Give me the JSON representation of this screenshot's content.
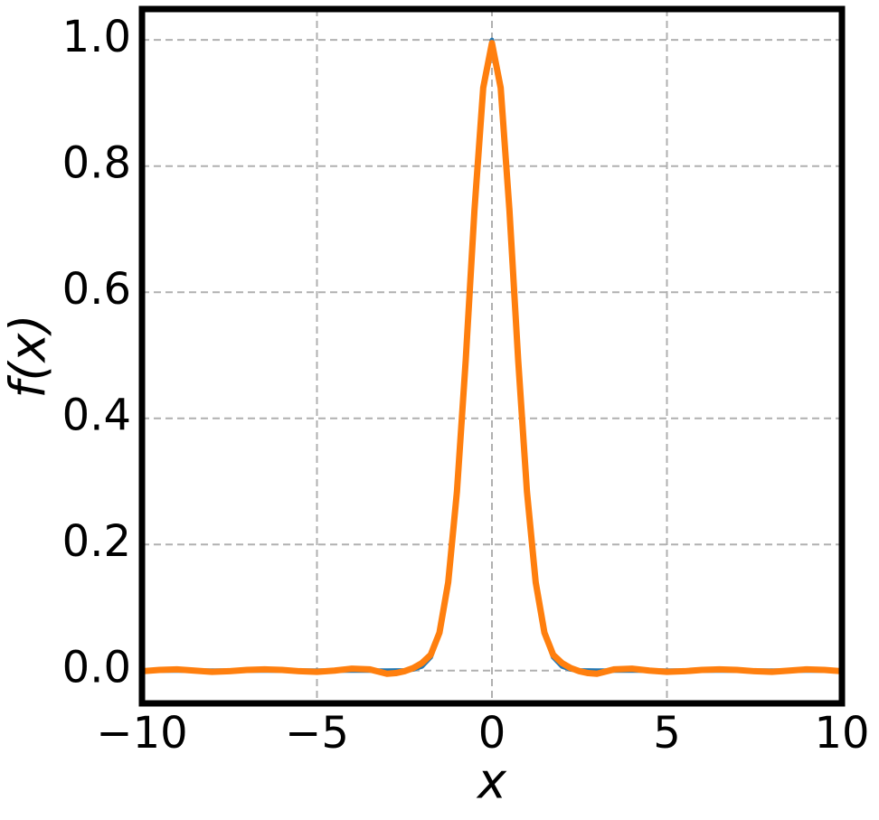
{
  "chart_data": {
    "type": "line",
    "x_label": "x",
    "y_label": "f(x)",
    "x": [
      -10,
      -9.5,
      -9,
      -8.5,
      -8,
      -7.5,
      -7,
      -6.5,
      -6,
      -5.5,
      -5,
      -4.5,
      -4,
      -3.5,
      -3,
      -2.75,
      -2.5,
      -2.25,
      -2,
      -1.75,
      -1.5,
      -1.25,
      -1,
      -0.75,
      -0.5,
      -0.25,
      0,
      0.25,
      0.5,
      0.75,
      1,
      1.25,
      1.5,
      1.75,
      2,
      2.25,
      2.5,
      2.75,
      3,
      3.5,
      4,
      4.5,
      5,
      5.5,
      6,
      6.5,
      7,
      7.5,
      8,
      8.5,
      9,
      9.5,
      10
    ],
    "series": [
      {
        "color": "#1f77b4",
        "width": 5,
        "values": [
          0,
          0,
          0,
          0,
          0,
          0,
          0,
          0,
          0,
          0,
          0,
          0,
          0,
          0,
          0,
          0.0001,
          0.0004,
          0.0017,
          0.0065,
          0.021,
          0.059,
          0.14,
          0.284,
          0.492,
          0.73,
          0.924,
          1,
          0.924,
          0.73,
          0.492,
          0.284,
          0.14,
          0.059,
          0.021,
          0.0065,
          0.0017,
          0.0004,
          0.0001,
          0,
          0,
          0,
          0,
          0,
          0,
          0,
          0,
          0,
          0,
          0,
          0,
          0,
          0,
          0
        ]
      },
      {
        "color": "#ff7f0e",
        "width": 7,
        "values": [
          -0.001,
          0.001,
          0.002,
          0,
          -0.002,
          -0.001,
          0.001,
          0.002,
          0.001,
          -0.001,
          -0.002,
          0,
          0.003,
          0.002,
          -0.005,
          -0.004,
          -0.001,
          0.004,
          0.012,
          0.025,
          0.06,
          0.14,
          0.284,
          0.492,
          0.73,
          0.924,
          0.995,
          0.924,
          0.73,
          0.492,
          0.284,
          0.14,
          0.06,
          0.025,
          0.012,
          0.004,
          -0.001,
          -0.004,
          -0.005,
          0.002,
          0.003,
          0,
          -0.002,
          -0.001,
          0.001,
          0.002,
          0.001,
          -0.001,
          -0.002,
          0,
          0.002,
          0.001,
          -0.001
        ]
      }
    ],
    "xlim": [
      -10,
      10
    ],
    "ylim": [
      -0.052,
      1.049
    ],
    "xticks": [
      {
        "value": -10,
        "label": "−10"
      },
      {
        "value": -5,
        "label": "−5"
      },
      0,
      5,
      10
    ],
    "yticks": [
      {
        "value": 0,
        "label": "0.0"
      },
      {
        "value": 0.2,
        "label": "0.2"
      },
      {
        "value": 0.4,
        "label": "0.4"
      },
      {
        "value": 0.6,
        "label": "0.6"
      },
      {
        "value": 0.8,
        "label": "0.8"
      },
      {
        "value": 1,
        "label": "1.0"
      }
    ],
    "grid": true
  }
}
